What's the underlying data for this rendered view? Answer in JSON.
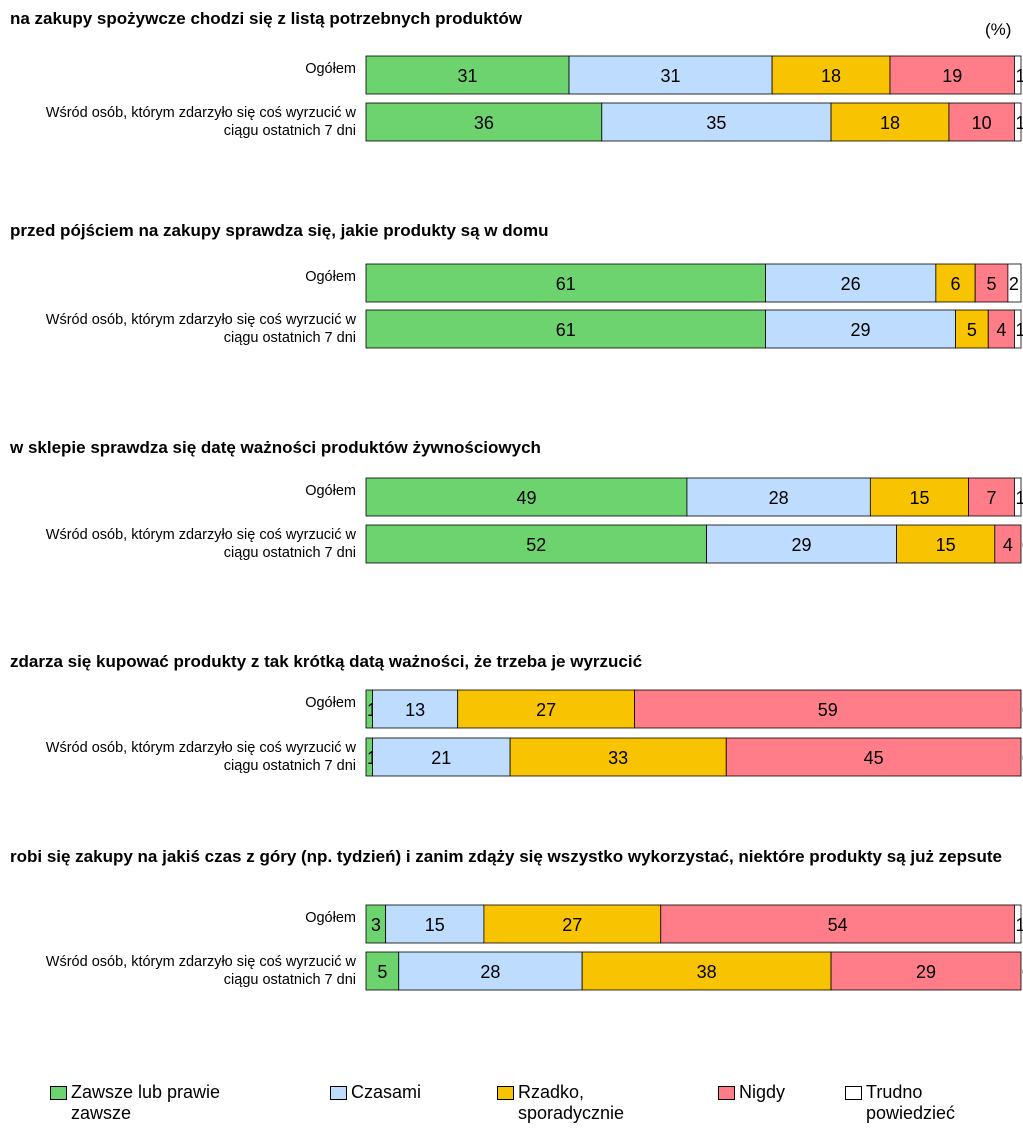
{
  "chart_data": {
    "type": "bar",
    "orientation": "horizontal",
    "stacked": true,
    "unit": "(%)",
    "xlim": [
      0,
      100
    ],
    "panels": [
      {
        "title": "na zakupy spożywcze chodzi się z listą potrzebnych produktów",
        "categories": [
          "Ogółem",
          "Wśród osób, którym zdarzyło się coś wyrzucić w ciągu ostatnich 7 dni"
        ]
      },
      {
        "title": "przed pójściem na zakupy sprawdza się, jakie produkty są w domu",
        "categories": [
          "Ogółem",
          "Wśród osób, którym zdarzyło się coś wyrzucić w ciągu ostatnich 7 dni"
        ]
      },
      {
        "title": "w sklepie sprawdza się datę ważności produktów żywnościowych",
        "categories": [
          "Ogółem",
          "Wśród osób, którym zdarzyło się coś wyrzucić w ciągu ostatnich 7 dni"
        ]
      },
      {
        "title": "zdarza się kupować produkty z tak krótką datą ważności, że trzeba je wyrzucić",
        "categories": [
          "Ogółem",
          "Wśród osób, którym zdarzyło się coś wyrzucić w ciągu ostatnich 7 dni"
        ]
      },
      {
        "title": "robi się zakupy na jakiś czas z góry (np. tydzień) i zanim zdąży się wszystko wykorzystać, niektóre produkty są już zepsute",
        "categories": [
          "Ogółem",
          "Wśród osób, którym zdarzyło się coś wyrzucić w ciągu ostatnich 7 dni"
        ]
      }
    ],
    "series": [
      {
        "name": "Zawsze lub prawie zawsze",
        "color": "#6dd36f",
        "values": [
          [
            31,
            36
          ],
          [
            61,
            61
          ],
          [
            49,
            52
          ],
          [
            1,
            1
          ],
          [
            3,
            5
          ]
        ]
      },
      {
        "name": "Czasami",
        "color": "#bddcfe",
        "values": [
          [
            31,
            35
          ],
          [
            26,
            29
          ],
          [
            28,
            29
          ],
          [
            13,
            21
          ],
          [
            15,
            28
          ]
        ]
      },
      {
        "name": "Rzadko, sporadycznie",
        "color": "#f8c300",
        "values": [
          [
            18,
            18
          ],
          [
            6,
            5
          ],
          [
            15,
            15
          ],
          [
            27,
            33
          ],
          [
            27,
            38
          ]
        ]
      },
      {
        "name": "Nigdy",
        "color": "#ff7d88",
        "values": [
          [
            19,
            10
          ],
          [
            5,
            4
          ],
          [
            7,
            4
          ],
          [
            59,
            45
          ],
          [
            54,
            29
          ]
        ]
      },
      {
        "name": "Trudno powiedzieć",
        "color": "#ffffff",
        "values": [
          [
            1,
            1
          ],
          [
            2,
            1
          ],
          [
            1,
            0
          ],
          [
            0,
            0
          ],
          [
            1,
            0
          ]
        ]
      }
    ]
  }
}
